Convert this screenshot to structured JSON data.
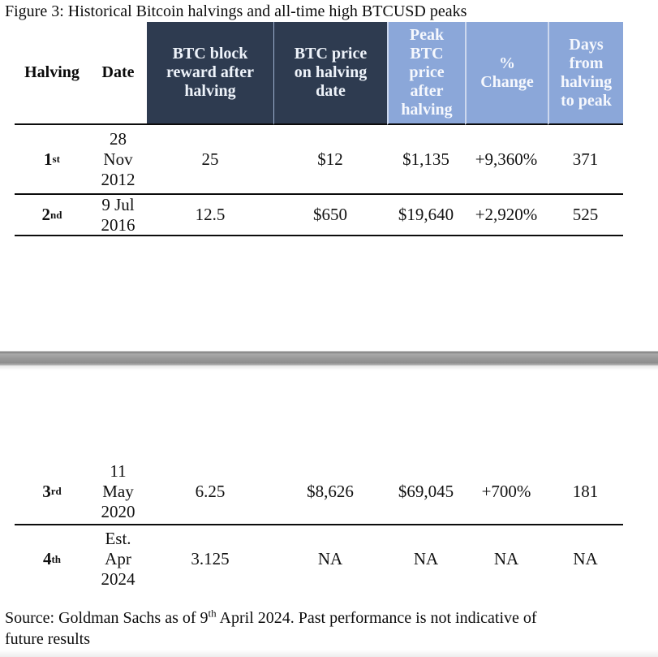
{
  "figure": {
    "title": "Figure 3: Historical Bitcoin halvings and all-time high BTCUSD peaks"
  },
  "table": {
    "headers": [
      {
        "label": "Halving"
      },
      {
        "label": "Date"
      },
      {
        "label": "BTC block\nreward after\nhalving"
      },
      {
        "label": "BTC price\non halving\ndate"
      },
      {
        "label": "Peak\nBTC\nprice\nafter\nhalving"
      },
      {
        "label": "%\nChange"
      },
      {
        "label": "Days\nfrom\nhalving\nto peak"
      }
    ],
    "rows": [
      {
        "ordinal": "1",
        "suffix": "st",
        "date": "28\nNov\n2012",
        "reward": "25",
        "price": "$12",
        "peak": "$1,135",
        "change": "+9,360%",
        "days": "371"
      },
      {
        "ordinal": "2",
        "suffix": "nd",
        "date": "9 Jul\n2016",
        "reward": "12.5",
        "price": "$650",
        "peak": "$19,640",
        "change": "+2,920%",
        "days": "525"
      },
      {
        "ordinal": "3",
        "suffix": "rd",
        "date": "11\nMay\n2020",
        "reward": "6.25",
        "price": "$8,626",
        "peak": "$69,045",
        "change": "+700%",
        "days": "181"
      },
      {
        "ordinal": "4",
        "suffix": "th",
        "date": "Est.\nApr\n2024",
        "reward": "3.125",
        "price": "NA",
        "peak": "NA",
        "change": "NA",
        "days": "NA"
      }
    ]
  },
  "source": {
    "prefix": "Source: Goldman Sachs as of 9",
    "sup": "th",
    "suffix": " April 2024. Past performance is not indicative of\nfuture results"
  },
  "colors": {
    "header_dark": "#2e3b50",
    "header_blue": "#8ba7d9"
  }
}
